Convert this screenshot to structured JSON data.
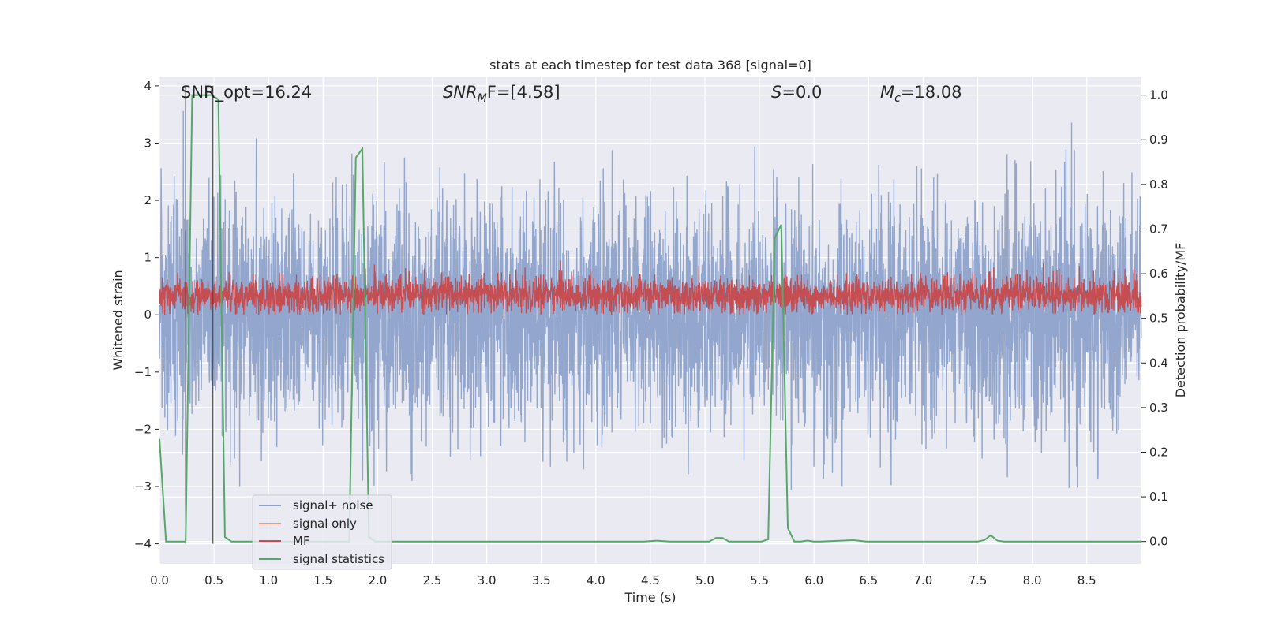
{
  "chart_data": {
    "type": "line",
    "title": "stats at each timestep for test data 368 [signal=0]",
    "xlabel": "Time (s)",
    "ylabel": "Whitened strain",
    "y2label": "Detection probability/MF",
    "xlim": [
      0.0,
      9.0
    ],
    "ylim": [
      -4.35,
      4.15
    ],
    "y2lim": [
      -0.05,
      1.04
    ],
    "x_ticks": [
      0.0,
      0.5,
      1.0,
      1.5,
      2.0,
      2.5,
      3.0,
      3.5,
      4.0,
      4.5,
      5.0,
      5.5,
      6.0,
      6.5,
      7.0,
      7.5,
      8.0,
      8.5
    ],
    "x_tick_labels": [
      "0.0",
      "0.5",
      "1.0",
      "1.5",
      "2.0",
      "2.5",
      "3.0",
      "3.5",
      "4.0",
      "4.5",
      "5.0",
      "5.5",
      "6.0",
      "6.5",
      "7.0",
      "7.5",
      "8.0",
      "8.5"
    ],
    "y_ticks": [
      4,
      3,
      2,
      1,
      0,
      -1,
      -2,
      -3,
      -4
    ],
    "y_tick_labels": [
      "4",
      "3",
      "2",
      "1",
      "0",
      "−1",
      "−2",
      "−3",
      "−4"
    ],
    "y2_ticks": [
      1.0,
      0.9,
      0.8,
      0.7,
      0.6,
      0.5,
      0.4,
      0.3,
      0.2,
      0.1,
      0.0
    ],
    "y2_tick_labels": [
      "1.0",
      "0.9",
      "0.8",
      "0.7",
      "0.6",
      "0.5",
      "0.4",
      "0.3",
      "0.2",
      "0.1",
      "0.0"
    ],
    "grid": true,
    "legend_position": "lower-left",
    "annotations": {
      "snr_opt": "SNR_opt=16.24",
      "snr_mf_sym": "SNR",
      "snr_mf_sub": "M",
      "snr_mf_rest": "F=[4.58]",
      "s_sym": "S",
      "s_rest": "=0.0",
      "mc_sym": "M",
      "mc_sub": "c",
      "mc_rest": "=18.08"
    },
    "vertical_markers": [
      0.24,
      0.49
    ],
    "series": [
      {
        "name": "signal+ noise",
        "color": "#8da2cb",
        "axis": "left",
        "description_values": "whitened noise, roughly in [-3.6, 3.8], dense"
      },
      {
        "name": "signal only",
        "color": "#eb9c7c",
        "axis": "left",
        "values": []
      },
      {
        "name": "MF",
        "color": "#c44e52",
        "axis": "left",
        "band": [
          0.0,
          0.95
        ]
      },
      {
        "name": "signal statistics",
        "color": "#55a868",
        "axis": "right",
        "x": [
          0.0,
          0.06,
          0.12,
          0.18,
          0.24,
          0.3,
          0.36,
          0.42,
          0.48,
          0.54,
          0.6,
          0.66,
          0.72,
          1.68,
          1.74,
          1.8,
          1.86,
          1.92,
          1.98,
          2.04,
          2.1,
          4.44,
          4.56,
          4.68,
          5.04,
          5.1,
          5.16,
          5.22,
          5.52,
          5.58,
          5.64,
          5.7,
          5.76,
          5.82,
          5.88,
          5.94,
          6.0,
          6.06,
          6.36,
          6.48,
          7.5,
          7.56,
          7.62,
          7.68,
          7.74,
          9.0
        ],
        "values": [
          0.23,
          0.0,
          0.0,
          0.0,
          0.0,
          1.0,
          1.0,
          1.0,
          1.0,
          0.99,
          0.01,
          0.0,
          0.0,
          0.0,
          0.0,
          0.86,
          0.88,
          0.01,
          0.0,
          0.0,
          0.0,
          0.0,
          0.002,
          0.0,
          0.0,
          0.008,
          0.008,
          0.0,
          0.0,
          0.005,
          0.68,
          0.71,
          0.03,
          0.0,
          0.0,
          0.002,
          0.0,
          0.0,
          0.003,
          0.0,
          0.0,
          0.003,
          0.014,
          0.002,
          0.0,
          0.0
        ]
      }
    ]
  }
}
